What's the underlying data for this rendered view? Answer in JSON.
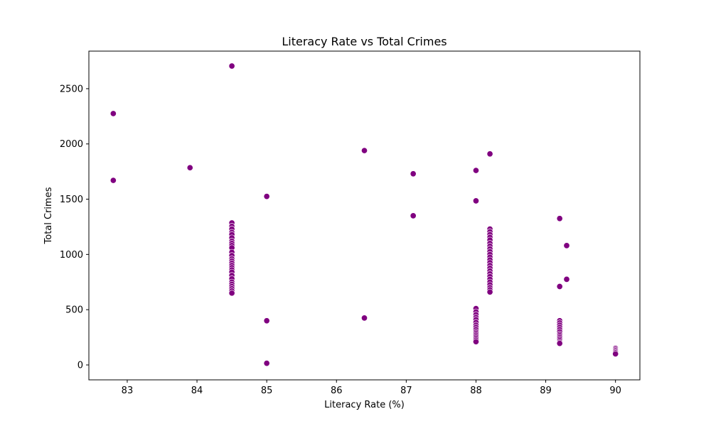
{
  "chart_data": {
    "type": "scatter",
    "title": "Literacy Rate vs Total Crimes",
    "xlabel": "Literacy Rate (%)",
    "ylabel": "Total Crimes",
    "xlim": [
      82.45,
      90.35
    ],
    "ylim": [
      -135,
      2840
    ],
    "xticks": [
      83,
      84,
      85,
      86,
      87,
      88,
      89,
      90
    ],
    "yticks": [
      0,
      500,
      1000,
      1500,
      2000,
      2500
    ],
    "grid": false,
    "marker_color": "#800080",
    "marker_edge_color": "#ffffff",
    "series": [
      {
        "points": [
          [
            82.8,
            2275
          ],
          [
            82.8,
            1670
          ],
          [
            83.9,
            1785
          ],
          [
            84.5,
            2705
          ],
          [
            84.5,
            1285
          ],
          [
            84.5,
            1255
          ],
          [
            84.5,
            1230
          ],
          [
            84.5,
            1200
          ],
          [
            84.5,
            1180
          ],
          [
            84.5,
            1150
          ],
          [
            84.5,
            1120
          ],
          [
            84.5,
            1100
          ],
          [
            84.5,
            1080
          ],
          [
            84.5,
            1060
          ],
          [
            84.5,
            1020
          ],
          [
            84.5,
            990
          ],
          [
            84.5,
            960
          ],
          [
            84.5,
            940
          ],
          [
            84.5,
            920
          ],
          [
            84.5,
            900
          ],
          [
            84.5,
            880
          ],
          [
            84.5,
            860
          ],
          [
            84.5,
            840
          ],
          [
            84.5,
            810
          ],
          [
            84.5,
            780
          ],
          [
            84.5,
            750
          ],
          [
            84.5,
            730
          ],
          [
            84.5,
            710
          ],
          [
            84.5,
            690
          ],
          [
            84.5,
            670
          ],
          [
            84.5,
            650
          ],
          [
            85.0,
            1525
          ],
          [
            85.0,
            400
          ],
          [
            85.0,
            15
          ],
          [
            86.4,
            1940
          ],
          [
            86.4,
            425
          ],
          [
            87.1,
            1730
          ],
          [
            87.1,
            1350
          ],
          [
            88.0,
            1760
          ],
          [
            88.0,
            1485
          ],
          [
            88.0,
            510
          ],
          [
            88.0,
            480
          ],
          [
            88.0,
            455
          ],
          [
            88.0,
            430
          ],
          [
            88.0,
            410
          ],
          [
            88.0,
            385
          ],
          [
            88.0,
            360
          ],
          [
            88.0,
            340
          ],
          [
            88.0,
            320
          ],
          [
            88.0,
            300
          ],
          [
            88.0,
            285
          ],
          [
            88.0,
            270
          ],
          [
            88.0,
            255
          ],
          [
            88.0,
            240
          ],
          [
            88.0,
            225
          ],
          [
            88.0,
            210
          ],
          [
            88.2,
            1910
          ],
          [
            88.2,
            1230
          ],
          [
            88.2,
            1205
          ],
          [
            88.2,
            1180
          ],
          [
            88.2,
            1155
          ],
          [
            88.2,
            1130
          ],
          [
            88.2,
            1100
          ],
          [
            88.2,
            1075
          ],
          [
            88.2,
            1050
          ],
          [
            88.2,
            1025
          ],
          [
            88.2,
            1000
          ],
          [
            88.2,
            975
          ],
          [
            88.2,
            950
          ],
          [
            88.2,
            925
          ],
          [
            88.2,
            900
          ],
          [
            88.2,
            875
          ],
          [
            88.2,
            850
          ],
          [
            88.2,
            825
          ],
          [
            88.2,
            800
          ],
          [
            88.2,
            775
          ],
          [
            88.2,
            750
          ],
          [
            88.2,
            725
          ],
          [
            88.2,
            700
          ],
          [
            88.2,
            680
          ],
          [
            88.2,
            660
          ],
          [
            89.2,
            1325
          ],
          [
            89.2,
            710
          ],
          [
            89.2,
            400
          ],
          [
            89.2,
            380
          ],
          [
            89.2,
            360
          ],
          [
            89.2,
            340
          ],
          [
            89.2,
            320
          ],
          [
            89.2,
            300
          ],
          [
            89.2,
            280
          ],
          [
            89.2,
            265
          ],
          [
            89.2,
            250
          ],
          [
            89.2,
            235
          ],
          [
            89.2,
            220
          ],
          [
            89.2,
            205
          ],
          [
            89.2,
            195
          ],
          [
            89.3,
            1080
          ],
          [
            89.3,
            775
          ],
          [
            90.0,
            150
          ],
          [
            90.0,
            140
          ],
          [
            90.0,
            130
          ],
          [
            90.0,
            120
          ],
          [
            90.0,
            110
          ],
          [
            90.0,
            100
          ]
        ]
      }
    ]
  }
}
